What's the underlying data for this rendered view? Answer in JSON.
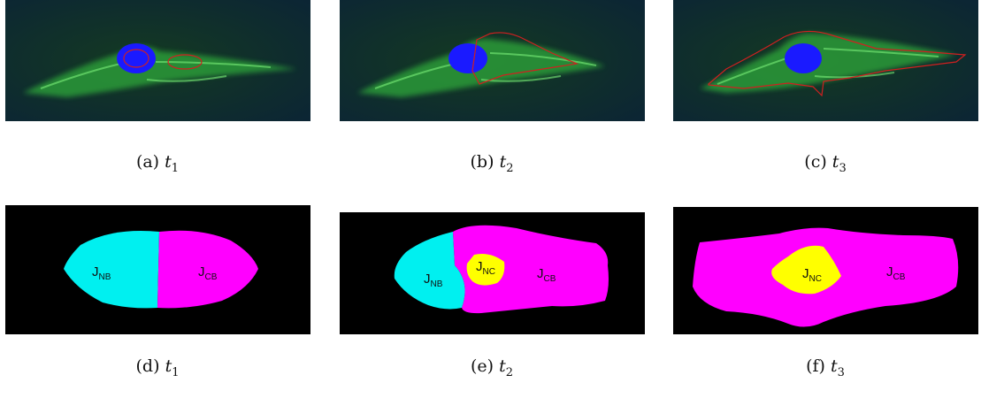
{
  "colors": {
    "background_fluor": "#0a2a18",
    "cytoskeleton": "#3fd84a",
    "nucleus": "#1a1aff",
    "contour": "#d02020",
    "region_nb": "#00f0f0",
    "region_cb": "#ff00ff",
    "region_nc": "#ffff00",
    "mask_background": "#000000"
  },
  "panels": [
    {
      "letter": "(a)",
      "var": "t",
      "sub": "1"
    },
    {
      "letter": "(b)",
      "var": "t",
      "sub": "2"
    },
    {
      "letter": "(c)",
      "var": "t",
      "sub": "3"
    },
    {
      "letter": "(d)",
      "var": "t",
      "sub": "1"
    },
    {
      "letter": "(e)",
      "var": "t",
      "sub": "2"
    },
    {
      "letter": "(f)",
      "var": "t",
      "sub": "3"
    }
  ],
  "labels": {
    "nb": {
      "main": "J",
      "sub": "NB"
    },
    "cb": {
      "main": "J",
      "sub": "CB"
    },
    "nc": {
      "main": "J",
      "sub": "NC"
    }
  }
}
